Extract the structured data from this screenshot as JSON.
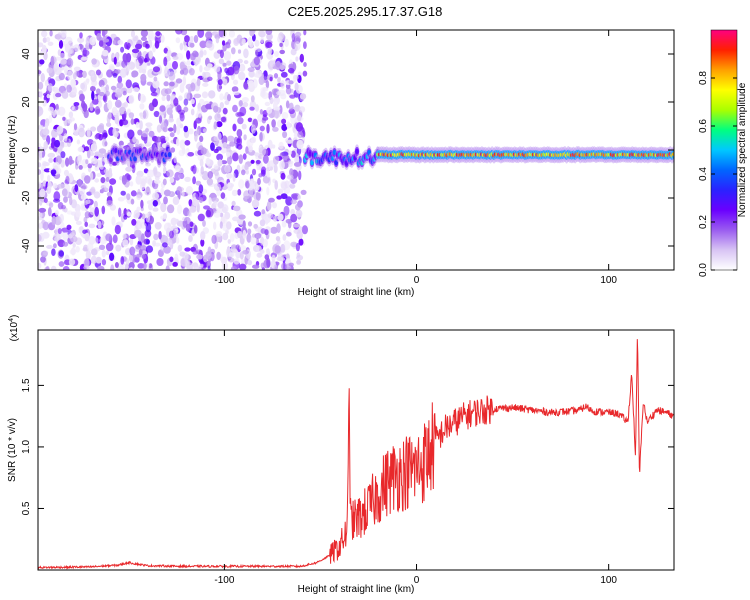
{
  "figure_title": "C2E5.2025.295.17.37.G18",
  "chart_data": [
    {
      "type": "heatmap",
      "title": "",
      "xlabel": "Height of straight line (km)",
      "ylabel": "Frequency (Hz)",
      "xlim": [
        -197,
        134
      ],
      "ylim": [
        -50,
        50
      ],
      "xticks": [
        -100,
        0,
        100
      ],
      "yticks": [
        -40,
        -20,
        0,
        20,
        40
      ],
      "colorbar": {
        "label": "Normalized spectral amplitude",
        "range": [
          0,
          1
        ],
        "ticks": [
          "0.0",
          "0.2",
          "0.4",
          "0.6",
          "0.8"
        ],
        "colormap": [
          "#ffffff",
          "#d8c4f4",
          "#9a5cf0",
          "#6a00ff",
          "#2a22ff",
          "#0066ff",
          "#00c8ff",
          "#00ff80",
          "#aaff00",
          "#ffff00",
          "#ffa000",
          "#ff2000",
          "#ff0080"
        ]
      },
      "features": [
        {
          "x_range": [
            -197,
            -58
          ],
          "description": "broadband noise, amplitude 0.05-0.25",
          "freq_range": [
            -50,
            50
          ]
        },
        {
          "x_range": [
            -160,
            -128
          ],
          "description": "weak carrier line",
          "freq": -2,
          "amplitude": 0.35
        },
        {
          "x_range": [
            -58,
            -20
          ],
          "description": "carrier line emerging, scattered",
          "freq": -3,
          "amplitude": 0.45
        },
        {
          "x_range": [
            -20,
            134
          ],
          "description": "strong carrier line",
          "freq": -2,
          "amplitude": 0.95
        }
      ]
    },
    {
      "type": "line",
      "title": "",
      "xlabel": "Height of straight line (km)",
      "ylabel": "SNR (10 * v/v)",
      "yscale_label": "(x10^4)",
      "xlim": [
        -197,
        134
      ],
      "ylim": [
        0,
        1.95
      ],
      "xticks": [
        -100,
        0,
        100
      ],
      "yticks": [
        0.5,
        1.0,
        1.5
      ],
      "series": [
        {
          "color": "#e8282b",
          "x": [
            -197,
            -170,
            -155,
            -150,
            -140,
            -120,
            -100,
            -80,
            -60,
            -52,
            -46,
            -40,
            -36,
            -35,
            -34,
            -33,
            -30,
            -25,
            -20,
            -15,
            -10,
            -5,
            0,
            5,
            10,
            15,
            20,
            25,
            30,
            40,
            50,
            60,
            70,
            80,
            85,
            88,
            92,
            100,
            105,
            110,
            112,
            114,
            115,
            116,
            118,
            120,
            125,
            130,
            134
          ],
          "y": [
            0.02,
            0.025,
            0.04,
            0.06,
            0.035,
            0.03,
            0.03,
            0.03,
            0.03,
            0.06,
            0.11,
            0.19,
            0.32,
            1.3,
            0.35,
            0.4,
            0.42,
            0.5,
            0.62,
            0.72,
            0.78,
            0.8,
            0.82,
            0.9,
            1.05,
            1.15,
            1.2,
            1.25,
            1.28,
            1.31,
            1.32,
            1.3,
            1.28,
            1.29,
            1.3,
            1.33,
            1.29,
            1.28,
            1.27,
            1.2,
            1.6,
            0.9,
            1.95,
            0.75,
            1.38,
            1.2,
            1.3,
            1.28,
            1.25
          ]
        }
      ]
    }
  ]
}
